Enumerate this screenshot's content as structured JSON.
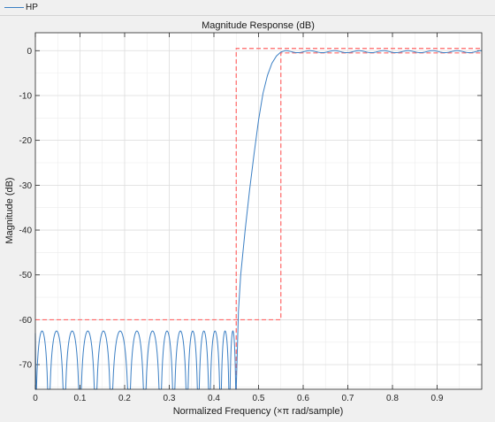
{
  "legend": {
    "label": "HP",
    "color": "#3b7fc4"
  },
  "chart_data": {
    "type": "line",
    "title": "Magnitude Response (dB)",
    "xlabel": "Normalized Frequency (×π rad/sample)",
    "ylabel": "Magnitude (dB)",
    "xlim": [
      0,
      1
    ],
    "ylim": [
      -75.5,
      4
    ],
    "grid": true,
    "legend_position": "top-left",
    "x_ticks": [
      0,
      0.1,
      0.2,
      0.3,
      0.4,
      0.5,
      0.6,
      0.7,
      0.8,
      0.9
    ],
    "x_tick_labels": [
      "0",
      "0.1",
      "0.2",
      "0.3",
      "0.4",
      "0.5",
      "0.6",
      "0.7",
      "0.8",
      "0.9"
    ],
    "y_ticks": [
      0,
      -10,
      -20,
      -30,
      -40,
      -50,
      -60,
      -70
    ],
    "y_tick_labels": [
      "0",
      "-10",
      "-20",
      "-30",
      "-40",
      "-50",
      "-60",
      "-70"
    ],
    "series": [
      {
        "name": "HP",
        "color": "#3b7fc4",
        "stopband_lobe_minima": [
          0,
          0.03,
          0.065,
          0.1,
          0.135,
          0.17,
          0.21,
          0.245,
          0.28,
          0.31,
          0.34,
          0.365,
          0.39,
          0.415,
          0.435,
          0.45
        ],
        "stopband_lobe_peak_db": -62.5,
        "stopband_floor_db": -75.5,
        "transition": {
          "x": [
            0.45,
            0.455,
            0.46,
            0.47,
            0.48,
            0.49,
            0.5,
            0.51,
            0.52,
            0.53,
            0.54,
            0.55,
            0.56
          ],
          "y": [
            -75.5,
            -58,
            -50,
            -40,
            -31,
            -23,
            -15.5,
            -9.5,
            -5.5,
            -2.8,
            -1.2,
            -0.3,
            0
          ]
        },
        "passband_ripple_db": 0.5,
        "passband_ripple_period": 0.055
      }
    ],
    "constraint_mask": {
      "color": "#ff6666",
      "stopband_edge": 0.45,
      "passband_edge": 0.55,
      "stopband_attenuation_db": -60,
      "passband_upper_db": 0.5,
      "passband_lower_db": -0.5
    }
  }
}
